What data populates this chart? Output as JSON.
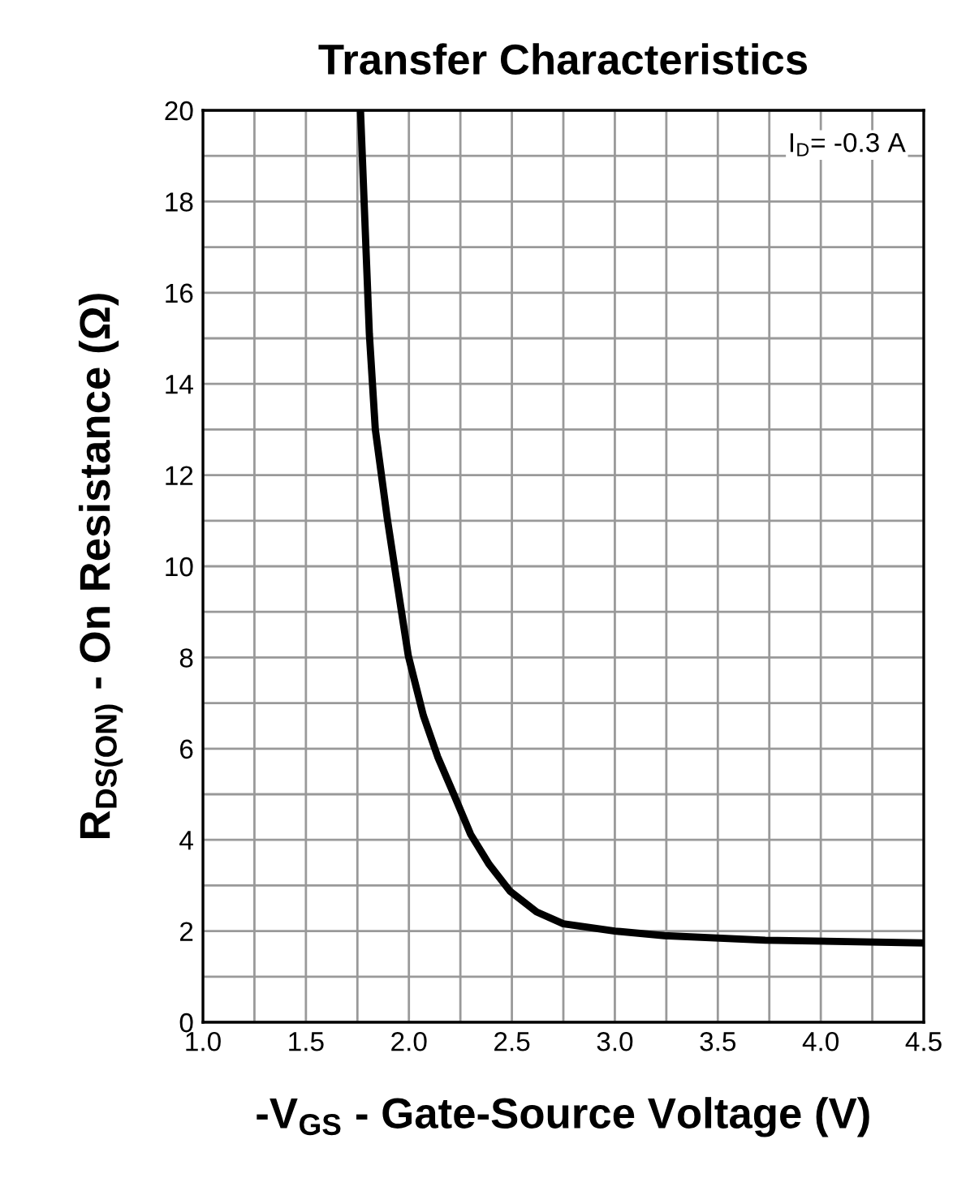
{
  "chart_data": {
    "type": "line",
    "title": "Transfer Characteristics",
    "xlabel": "-V$_{GS}$ - Gate-Source Voltage (V)",
    "ylabel": "R$_{DS(ON)}$ - On Resistance (Ω)",
    "annotations": [
      "I$_{D}$= -0.3 A"
    ],
    "x": [
      1.765,
      1.808,
      1.837,
      1.895,
      1.939,
      1.997,
      2.07,
      2.14,
      2.215,
      2.3,
      2.39,
      2.49,
      2.62,
      2.75,
      3.0,
      3.24,
      3.73,
      4.5
    ],
    "series": [
      {
        "color": "#000000",
        "values": [
          20,
          15.1,
          13.0,
          11.05,
          9.74,
          8.04,
          6.73,
          5.82,
          5.03,
          4.12,
          3.46,
          2.88,
          2.42,
          2.16,
          2.0,
          1.9,
          1.8,
          1.74
        ]
      }
    ],
    "xlim": [
      1.0,
      4.5
    ],
    "ylim": [
      0,
      20
    ],
    "xticks": [
      {
        "value": 1,
        "label": "1.0"
      },
      {
        "value": 1.25,
        "label": null
      },
      1.5,
      {
        "value": 1.75,
        "label": null
      },
      {
        "value": 2,
        "label": "2.0"
      },
      {
        "value": 2.25,
        "label": null
      },
      2.5,
      {
        "value": 2.75,
        "label": null
      },
      {
        "value": 3,
        "label": "3.0"
      },
      {
        "value": 3.25,
        "label": null
      },
      3.5,
      {
        "value": 3.75,
        "label": null
      },
      {
        "value": 4,
        "label": "4.0"
      },
      {
        "value": 4.25,
        "label": null
      },
      4.5
    ],
    "yticks": [
      0,
      {
        "value": 1,
        "label": null
      },
      2,
      {
        "value": 3,
        "label": null
      },
      4,
      {
        "value": 5,
        "label": null
      },
      6,
      {
        "value": 7,
        "label": null
      },
      8,
      {
        "value": 9,
        "label": null
      },
      10,
      {
        "value": 11,
        "label": null
      },
      12,
      {
        "value": 13,
        "label": null
      },
      14,
      {
        "value": 15,
        "label": null
      },
      16,
      {
        "value": 17,
        "label": null
      },
      18,
      {
        "value": 19,
        "label": null
      },
      20
    ],
    "grid": true,
    "line_style": "solid",
    "marker": "none"
  }
}
